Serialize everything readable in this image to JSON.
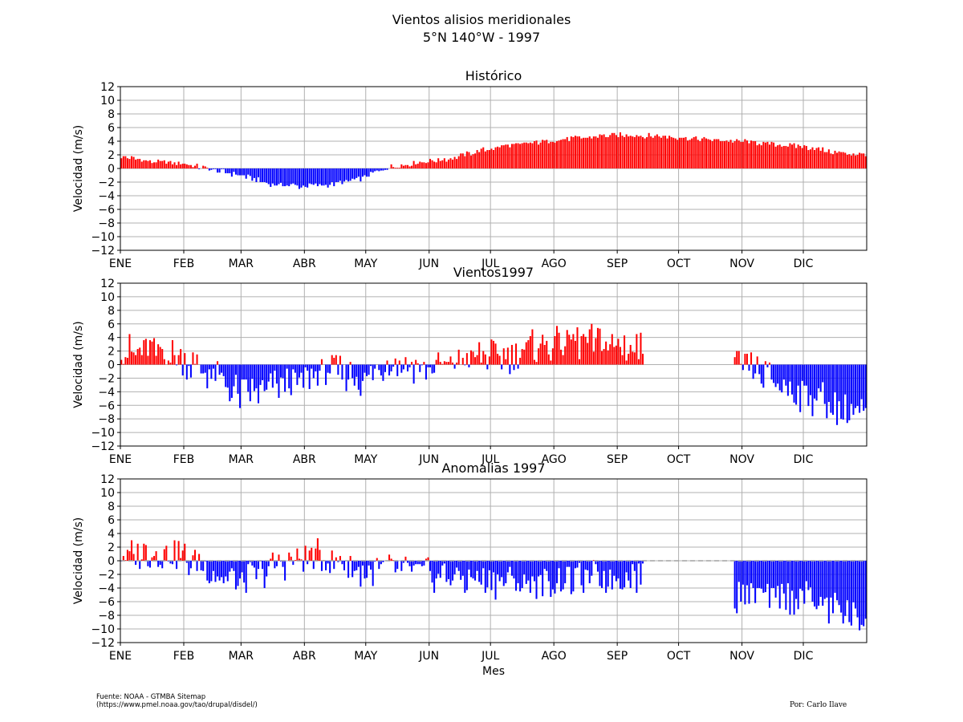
{
  "figure": {
    "title_line1": "Vientos alisios meridionales",
    "title_line2": "5°N 140°W - 1997",
    "source_line1": "Fuente: NOAA - GTMBA Sitemap",
    "source_line2": "(https://www.pmel.noaa.gov/tao/drupal/disdel/)",
    "author": "Por: Carlo Ilave"
  },
  "colors": {
    "positive": "#ff0000",
    "negative": "#0000ff",
    "grid": "#b0b0b0",
    "zero_line": "#a0a0a0"
  },
  "chart_data": [
    {
      "type": "bar",
      "title": "Histórico",
      "ylabel": "Velocidad (m/s)",
      "xlabel": "",
      "ylim": [
        -12,
        12
      ],
      "yticks": [
        "−12",
        "−10",
        "−8",
        "−6",
        "−4",
        "−2",
        "0",
        "2",
        "4",
        "6",
        "8",
        "10",
        "12"
      ],
      "xticks": [
        "ENE",
        "FEB",
        "MAR",
        "ABR",
        "MAY",
        "JUN",
        "JUL",
        "AGO",
        "SEP",
        "OCT",
        "NOV",
        "DIC"
      ],
      "grid": true,
      "series_name": "",
      "monthly_anchor_values": [
        1.8,
        1.0,
        0.8,
        -0.2,
        -1.0,
        -2.3,
        -2.6,
        -2.4,
        -1.5,
        0.2,
        0.9,
        1.4,
        2.6,
        3.4,
        3.9,
        4.3,
        4.8,
        4.9,
        4.7,
        4.5,
        4.1,
        3.9,
        3.5,
        3.1,
        2.3,
        2.0
      ]
    },
    {
      "type": "bar",
      "title": "Vientos1997",
      "ylabel": "Velocidad (m/s)",
      "xlabel": "",
      "ylim": [
        -12,
        12
      ],
      "yticks": [
        "−12",
        "−10",
        "−8",
        "−6",
        "−4",
        "−2",
        "0",
        "2",
        "4",
        "6",
        "8",
        "10",
        "12"
      ],
      "xticks": [
        "ENE",
        "FEB",
        "MAR",
        "ABR",
        "MAY",
        "JUN",
        "JUL",
        "AGO",
        "SEP",
        "OCT",
        "NOV",
        "DIC"
      ],
      "grid": true,
      "series_name": "",
      "missing_days": "approx. 14 Sep to 25 Oct (no data)",
      "monthly_anchor_values": [
        2.0,
        2.0,
        1.2,
        -1.5,
        -4.5,
        -3.5,
        -2.5,
        -0.8,
        -2.5,
        0.5,
        -0.5,
        0.2,
        1.2,
        1.0,
        3.0,
        3.2,
        3.5,
        2.5,
        null,
        null,
        null,
        -0.5,
        -3.0,
        -4.5,
        -6.5,
        -7.5
      ]
    },
    {
      "type": "bar",
      "title": "Anomalias 1997",
      "ylabel": "Velocidad (m/s)",
      "xlabel": "Mes",
      "ylim": [
        -12,
        12
      ],
      "yticks": [
        "−12",
        "−10",
        "−8",
        "−6",
        "−4",
        "−2",
        "0",
        "2",
        "4",
        "6",
        "8",
        "10",
        "12"
      ],
      "xticks": [
        "ENE",
        "FEB",
        "MAR",
        "ABR",
        "MAY",
        "JUN",
        "JUL",
        "AGO",
        "SEP",
        "OCT",
        "NOV",
        "DIC"
      ],
      "grid": true,
      "series_name": "",
      "missing_days": "approx. 14 Sep to 25 Oct (no data)",
      "monthly_anchor_values": [
        0.5,
        1.0,
        0.8,
        -1.5,
        -3.5,
        -1.0,
        0.5,
        0.5,
        -1.5,
        -1.0,
        -1.5,
        -2.5,
        -2.5,
        -3.0,
        -3.5,
        -2.5,
        -3.0,
        -2.5,
        null,
        null,
        null,
        -5.0,
        -5.5,
        -5.5,
        -7.5,
        -8.5
      ]
    }
  ]
}
